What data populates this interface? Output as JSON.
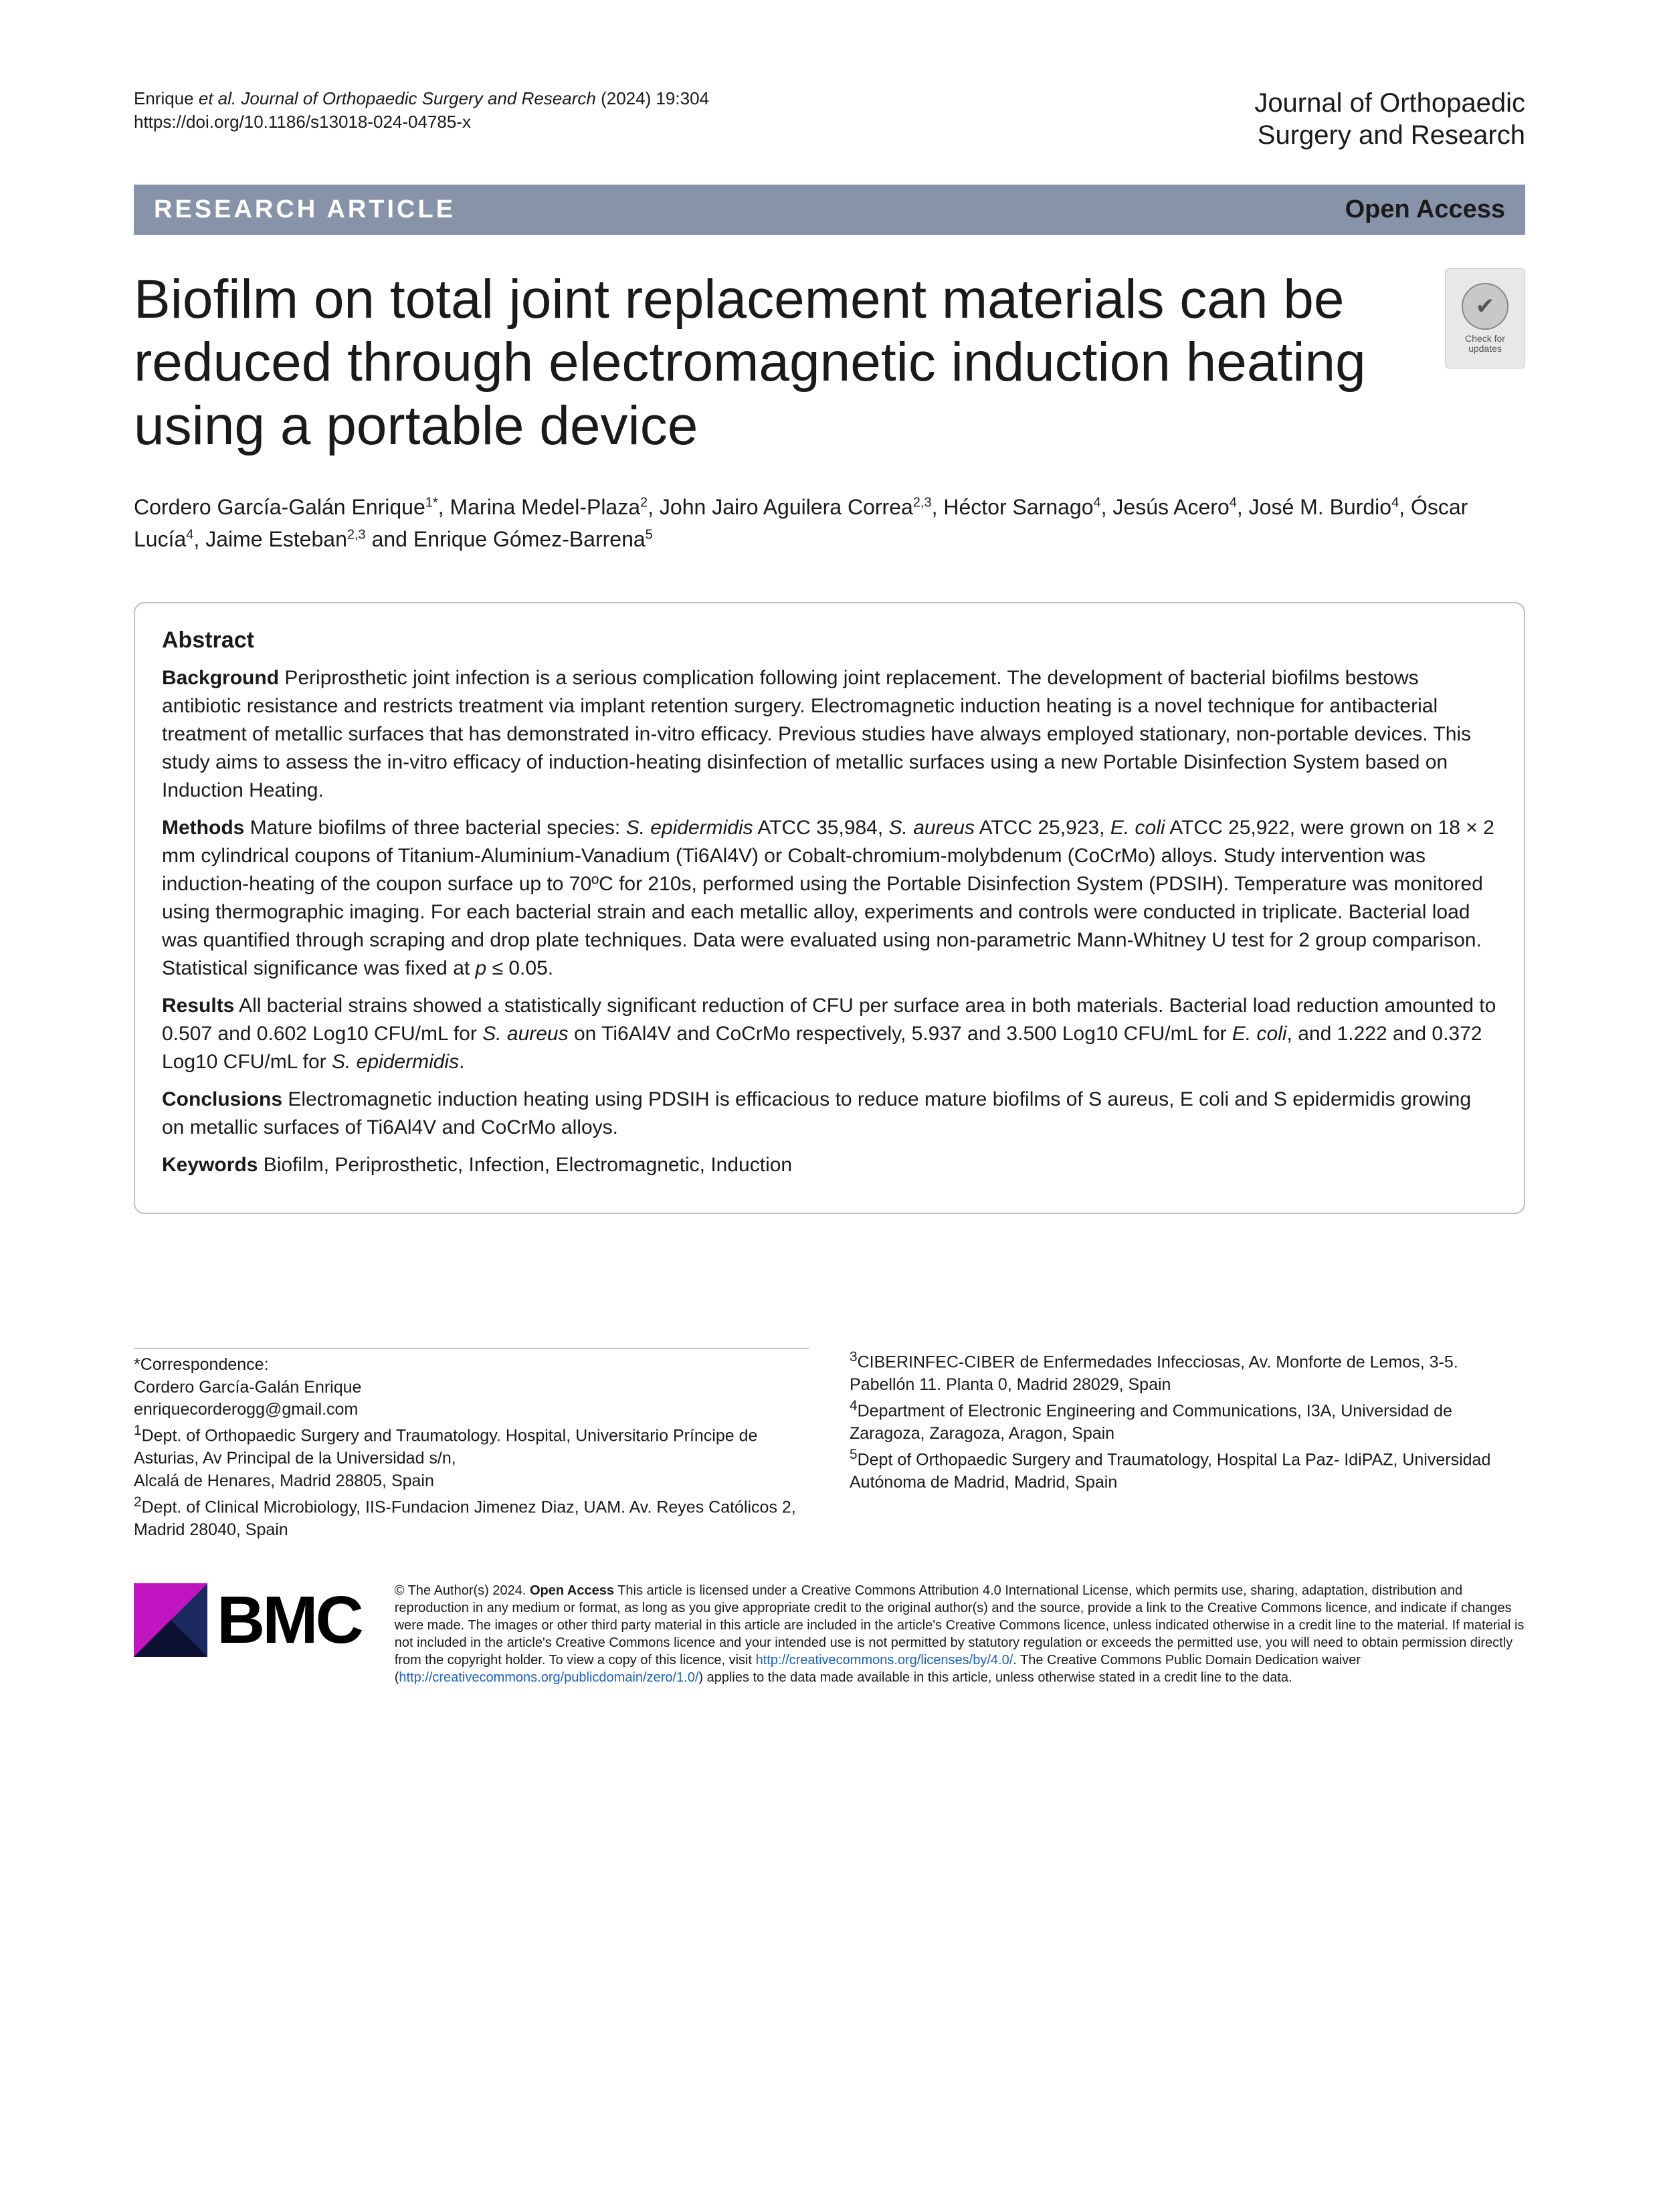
{
  "header": {
    "citation_line1_prefix": "Enrique ",
    "citation_line1_italic": "et al. Journal of Orthopaedic Surgery and Research",
    "citation_line1_suffix": "    (2024) 19:304",
    "citation_line2": "https://doi.org/10.1186/s13018-024-04785-x",
    "journal_line1": "Journal of Orthopaedic",
    "journal_line2": "Surgery and Research"
  },
  "banner": {
    "left": "RESEARCH ARTICLE",
    "right": "Open Access"
  },
  "badge": {
    "line1": "Check for",
    "line2": "updates"
  },
  "title": "Biofilm on total joint replacement materials can be reduced through electromagnetic induction heating using a portable device",
  "authors_html": "Cordero García-Galán Enrique<sup>1*</sup>, Marina Medel-Plaza<sup>2</sup>, John Jairo Aguilera Correa<sup>2,3</sup>, Héctor Sarnago<sup>4</sup>, Jesús Acero<sup>4</sup>, José M. Burdio<sup>4</sup>, Óscar Lucía<sup>4</sup>, Jaime Esteban<sup>2,3</sup> and Enrique Gómez-Barrena<sup>5</sup>",
  "abstract": {
    "heading": "Abstract",
    "background_label": "Background",
    "background_text": " Periprosthetic joint infection is a serious complication following joint replacement. The development of bacterial biofilms bestows antibiotic resistance and restricts treatment via implant retention surgery. Electromagnetic induction heating is a novel technique for antibacterial treatment of metallic surfaces that has demonstrated in-vitro efficacy. Previous studies have always employed stationary, non-portable devices. This study aims to assess the in-vitro efficacy of induction-heating disinfection of metallic surfaces using a new Portable Disinfection System based on Induction Heating.",
    "methods_label": "Methods",
    "methods_pre": " Mature biofilms of three bacterial species: ",
    "methods_sp1": "S. epidermidis",
    "methods_mid1": " ATCC 35,984, ",
    "methods_sp2": "S. aureus",
    "methods_mid2": " ATCC 25,923, ",
    "methods_sp3": "E. coli",
    "methods_post": " ATCC 25,922, were grown on 18 × 2 mm cylindrical coupons of Titanium-Aluminium-Vanadium (Ti6Al4V) or Cobalt-chromium-molybdenum (CoCrMo) alloys. Study intervention was induction-heating of the coupon surface up to 70ºC for 210s, performed using the Portable Disinfection System (PDSIH). Temperature was monitored using thermographic imaging. For each bacterial strain and each metallic alloy, experiments and controls were conducted in triplicate. Bacterial load was quantified through scraping and drop plate techniques. Data were evaluated using non-parametric Mann-Whitney U test for 2 group comparison. Statistical significance was fixed at ",
    "methods_p": "p",
    "methods_end": " ≤ 0.05.",
    "results_label": "Results",
    "results_pre": " All bacterial strains showed a statistically significant reduction of CFU per surface area in both materials. Bacterial load reduction amounted to 0.507 and 0.602 Log10 CFU/mL for ",
    "results_sp1": "S. aureus",
    "results_mid1": " on Ti6Al4V and CoCrMo respectively, 5.937 and 3.500 Log10 CFU/mL for ",
    "results_sp2": "E. coli",
    "results_mid2": ", and 1.222 and 0.372 Log10 CFU/mL for ",
    "results_sp3": "S. epidermidis",
    "results_end": ".",
    "conclusions_label": "Conclusions",
    "conclusions_text": " Electromagnetic induction heating using PDSIH is efficacious to reduce mature biofilms of S aureus, E coli and S epidermidis growing on metallic surfaces of Ti6Al4V and CoCrMo alloys.",
    "keywords_label": "Keywords",
    "keywords_text": " Biofilm, Periprosthetic, Infection, Electromagnetic, Induction"
  },
  "correspondence": {
    "left_html": "*Correspondence:<br>Cordero García-Galán Enrique<br>enriquecorderogg@gmail.com<br><sup>1</sup>Dept. of Orthopaedic Surgery and Traumatology. Hospital, Universitario Príncipe de Asturias, Av Principal de la Universidad s/n,<br>Alcalá de Henares, Madrid 28805, Spain<br><sup>2</sup>Dept. of Clinical Microbiology, IIS-Fundacion Jimenez Diaz, UAM. Av. Reyes Católicos 2, Madrid 28040, Spain",
    "right_html": "<sup>3</sup>CIBERINFEC-CIBER de Enfermedades Infecciosas, Av. Monforte de Lemos, 3-5. Pabellón 11. Planta 0, Madrid 28029, Spain<br><sup>4</sup>Department of Electronic Engineering and Communications, I3A, Universidad de Zaragoza, Zaragoza, Aragon, Spain<br><sup>5</sup>Dept of Orthopaedic Surgery and Traumatology, Hospital La Paz- IdiPAZ, Universidad Autónoma de Madrid, Madrid, Spain"
  },
  "bmc": {
    "text": "BMC",
    "mark_colors": {
      "tri1": "#c215c2",
      "tri2": "#1a2a5e",
      "tri3": "#0a1030"
    }
  },
  "license": {
    "prefix": "© The Author(s) 2024. ",
    "bold": "Open Access",
    "body1": " This article is licensed under a Creative Commons Attribution 4.0 International License, which permits use, sharing, adaptation, distribution and reproduction in any medium or format, as long as you give appropriate credit to the original author(s) and the source, provide a link to the Creative Commons licence, and indicate if changes were made. The images or other third party material in this article are included in the article's Creative Commons licence, unless indicated otherwise in a credit line to the material. If material is not included in the article's Creative Commons licence and your intended use is not permitted by statutory regulation or exceeds the permitted use, you will need to obtain permission directly from the copyright holder. To view a copy of this licence, visit ",
    "link1": "http://creativecommons.org/licenses/by/4.0/",
    "body2": ". The Creative Commons Public Domain Dedication waiver (",
    "link2": "http://creativecommons.org/publicdomain/zero/1.0/",
    "body3": ") applies to the data made available in this article, unless otherwise stated in a credit line to the data."
  }
}
